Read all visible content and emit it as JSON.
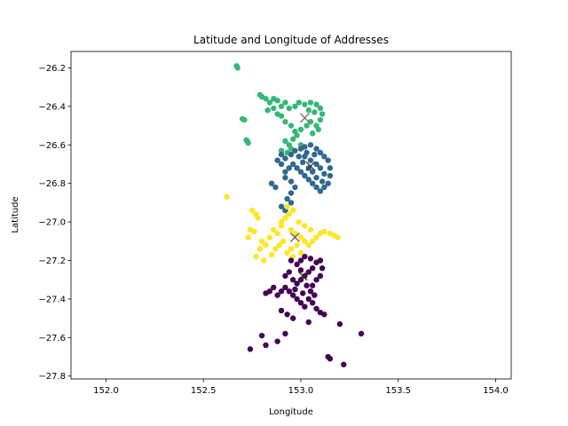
{
  "chart_data": {
    "type": "scatter",
    "title": "Latitude and Longitude of Addresses",
    "xlabel": "Longitude",
    "ylabel": "Latitude",
    "xlim": [
      151.82,
      154.08
    ],
    "ylim": [
      -27.815,
      -26.115
    ],
    "xticks": [
      152.0,
      152.5,
      153.0,
      153.5,
      154.0
    ],
    "xtick_labels": [
      "152.0",
      "152.5",
      "153.0",
      "153.5",
      "154.0"
    ],
    "yticks": [
      -26.2,
      -26.4,
      -26.6,
      -26.8,
      -27.0,
      -27.2,
      -27.4,
      -27.6,
      -27.8
    ],
    "ytick_labels": [
      "−26.2",
      "−26.4",
      "−26.6",
      "−26.8",
      "−27.0",
      "−27.2",
      "−27.4",
      "−27.6",
      "−27.8"
    ],
    "grid": false,
    "legend": "none",
    "series": [
      {
        "color": "#35b779",
        "points": [
          [
            152.67,
            -26.19
          ],
          [
            152.675,
            -26.2
          ],
          [
            152.7,
            -26.465
          ],
          [
            152.71,
            -26.47
          ],
          [
            152.72,
            -26.575
          ],
          [
            152.73,
            -26.59
          ],
          [
            152.725,
            -26.58
          ],
          [
            152.79,
            -26.34
          ],
          [
            152.8,
            -26.35
          ],
          [
            152.82,
            -26.36
          ],
          [
            152.84,
            -26.38
          ],
          [
            152.83,
            -26.42
          ],
          [
            152.86,
            -26.36
          ],
          [
            152.88,
            -26.37
          ],
          [
            152.9,
            -26.4
          ],
          [
            152.92,
            -26.38
          ],
          [
            152.94,
            -26.41
          ],
          [
            152.9,
            -26.45
          ],
          [
            152.92,
            -26.48
          ],
          [
            152.95,
            -26.5
          ],
          [
            152.88,
            -26.44
          ],
          [
            152.86,
            -26.41
          ],
          [
            152.97,
            -26.4
          ],
          [
            152.99,
            -26.38
          ],
          [
            153.02,
            -26.39
          ],
          [
            153.05,
            -26.38
          ],
          [
            153.08,
            -26.39
          ],
          [
            153.1,
            -26.41
          ],
          [
            153.11,
            -26.44
          ],
          [
            153.1,
            -26.47
          ],
          [
            153.08,
            -26.5
          ],
          [
            153.06,
            -26.54
          ],
          [
            153.05,
            -26.48
          ],
          [
            153.03,
            -26.5
          ],
          [
            153.0,
            -26.52
          ],
          [
            152.98,
            -26.55
          ],
          [
            152.96,
            -26.57
          ],
          [
            152.94,
            -26.6
          ],
          [
            152.92,
            -26.58
          ],
          [
            152.9,
            -26.63
          ],
          [
            152.93,
            -26.64
          ],
          [
            152.95,
            -26.62
          ],
          [
            153.0,
            -26.6
          ],
          [
            152.97,
            -26.53
          ],
          [
            153.04,
            -26.42
          ],
          [
            153.07,
            -26.43
          ],
          [
            153.09,
            -26.52
          ]
        ]
      },
      {
        "color": "#31688e",
        "points": [
          [
            152.9,
            -26.65
          ],
          [
            152.92,
            -26.67
          ],
          [
            152.95,
            -26.65
          ],
          [
            152.97,
            -26.63
          ],
          [
            153.0,
            -26.62
          ],
          [
            153.02,
            -26.61
          ],
          [
            153.05,
            -26.6
          ],
          [
            153.08,
            -26.62
          ],
          [
            153.1,
            -26.64
          ],
          [
            153.12,
            -26.66
          ],
          [
            153.14,
            -26.68
          ],
          [
            153.15,
            -26.72
          ],
          [
            153.15,
            -26.76
          ],
          [
            153.14,
            -26.8
          ],
          [
            153.12,
            -26.82
          ],
          [
            153.1,
            -26.84
          ],
          [
            153.08,
            -26.82
          ],
          [
            153.06,
            -26.8
          ],
          [
            153.04,
            -26.78
          ],
          [
            153.02,
            -26.76
          ],
          [
            153.0,
            -26.74
          ],
          [
            152.98,
            -26.72
          ],
          [
            152.96,
            -26.7
          ],
          [
            152.94,
            -26.72
          ],
          [
            152.92,
            -26.74
          ],
          [
            152.9,
            -26.7
          ],
          [
            152.88,
            -26.68
          ],
          [
            152.92,
            -26.77
          ],
          [
            152.95,
            -26.79
          ],
          [
            152.97,
            -26.82
          ],
          [
            152.95,
            -26.85
          ],
          [
            152.93,
            -26.88
          ],
          [
            152.9,
            -26.92
          ],
          [
            152.92,
            -26.94
          ],
          [
            152.95,
            -26.9
          ],
          [
            152.85,
            -26.8
          ],
          [
            152.87,
            -26.82
          ],
          [
            153.02,
            -26.66
          ],
          [
            153.05,
            -26.68
          ],
          [
            153.08,
            -26.7
          ],
          [
            153.1,
            -26.72
          ],
          [
            153.12,
            -26.75
          ],
          [
            153.04,
            -26.72
          ],
          [
            153.06,
            -26.74
          ],
          [
            153.01,
            -26.69
          ],
          [
            153.08,
            -26.77
          ],
          [
            153.11,
            -26.79
          ],
          [
            152.99,
            -26.66
          ],
          [
            153.03,
            -26.64
          ],
          [
            153.07,
            -26.65
          ]
        ]
      },
      {
        "color": "#fde725",
        "points": [
          [
            152.62,
            -26.87
          ],
          [
            152.75,
            -26.94
          ],
          [
            152.77,
            -26.96
          ],
          [
            152.78,
            -26.98
          ],
          [
            152.74,
            -27.04
          ],
          [
            152.76,
            -27.05
          ],
          [
            152.73,
            -27.08
          ],
          [
            152.8,
            -27.1
          ],
          [
            152.79,
            -27.14
          ],
          [
            152.77,
            -27.18
          ],
          [
            152.81,
            -27.2
          ],
          [
            152.85,
            -27.17
          ],
          [
            152.87,
            -27.14
          ],
          [
            152.89,
            -27.12
          ],
          [
            152.91,
            -27.1
          ],
          [
            152.88,
            -27.06
          ],
          [
            152.86,
            -27.04
          ],
          [
            152.9,
            -27.02
          ],
          [
            152.92,
            -26.98
          ],
          [
            152.94,
            -26.96
          ],
          [
            152.96,
            -26.94
          ],
          [
            152.93,
            -26.92
          ],
          [
            152.9,
            -27.0
          ],
          [
            152.95,
            -27.04
          ],
          [
            152.97,
            -27.06
          ],
          [
            153.0,
            -27.08
          ],
          [
            153.02,
            -27.1
          ],
          [
            153.04,
            -27.12
          ],
          [
            153.06,
            -27.1
          ],
          [
            153.08,
            -27.08
          ],
          [
            153.1,
            -27.06
          ],
          [
            153.12,
            -27.05
          ],
          [
            153.15,
            -27.06
          ],
          [
            153.17,
            -27.07
          ],
          [
            153.19,
            -27.08
          ],
          [
            152.98,
            -27.12
          ],
          [
            152.95,
            -27.14
          ],
          [
            152.93,
            -27.16
          ],
          [
            152.96,
            -27.18
          ],
          [
            153.0,
            -27.16
          ],
          [
            153.02,
            -27.02
          ],
          [
            153.05,
            -27.04
          ],
          [
            152.99,
            -27.0
          ],
          [
            152.84,
            -27.08
          ],
          [
            152.82,
            -27.12
          ]
        ]
      },
      {
        "color": "#440154",
        "points": [
          [
            152.95,
            -27.2
          ],
          [
            152.98,
            -27.22
          ],
          [
            153.0,
            -27.2
          ],
          [
            153.02,
            -27.18
          ],
          [
            153.05,
            -27.19
          ],
          [
            153.08,
            -27.21
          ],
          [
            153.1,
            -27.2
          ],
          [
            153.11,
            -27.24
          ],
          [
            153.1,
            -27.28
          ],
          [
            153.08,
            -27.3
          ],
          [
            153.06,
            -27.33
          ],
          [
            153.05,
            -27.36
          ],
          [
            153.04,
            -27.4
          ],
          [
            153.06,
            -27.42
          ],
          [
            153.08,
            -27.45
          ],
          [
            153.1,
            -27.47
          ],
          [
            153.12,
            -27.48
          ],
          [
            153.02,
            -27.44
          ],
          [
            153.0,
            -27.42
          ],
          [
            152.98,
            -27.4
          ],
          [
            152.96,
            -27.38
          ],
          [
            152.94,
            -27.36
          ],
          [
            152.92,
            -27.34
          ],
          [
            152.9,
            -27.36
          ],
          [
            152.88,
            -27.38
          ],
          [
            152.86,
            -27.34
          ],
          [
            152.92,
            -27.28
          ],
          [
            152.94,
            -27.26
          ],
          [
            152.96,
            -27.3
          ],
          [
            152.98,
            -27.32
          ],
          [
            153.0,
            -27.3
          ],
          [
            153.02,
            -27.28
          ],
          [
            153.04,
            -27.26
          ],
          [
            153.06,
            -27.24
          ],
          [
            152.82,
            -27.37
          ],
          [
            152.84,
            -27.36
          ],
          [
            152.9,
            -27.46
          ],
          [
            152.93,
            -27.48
          ],
          [
            152.96,
            -27.5
          ],
          [
            153.04,
            -27.52
          ],
          [
            152.74,
            -27.66
          ],
          [
            152.8,
            -27.59
          ],
          [
            152.82,
            -27.64
          ],
          [
            152.88,
            -27.62
          ],
          [
            152.92,
            -27.58
          ],
          [
            153.14,
            -27.7
          ],
          [
            153.15,
            -27.71
          ],
          [
            153.22,
            -27.74
          ],
          [
            153.2,
            -27.53
          ],
          [
            153.31,
            -27.58
          ],
          [
            153.0,
            -27.25
          ],
          [
            153.03,
            -27.33
          ],
          [
            153.07,
            -27.38
          ],
          [
            152.97,
            -27.35
          ],
          [
            153.01,
            -27.37
          ]
        ]
      }
    ],
    "centroids": [
      {
        "x": 153.02,
        "y": -26.46,
        "color": "#666666"
      },
      {
        "x": 153.05,
        "y": -26.71,
        "color": "#333333"
      },
      {
        "x": 152.97,
        "y": -27.08,
        "color": "#555555"
      },
      {
        "x": 153.01,
        "y": -27.28,
        "color": "#333333"
      }
    ]
  }
}
